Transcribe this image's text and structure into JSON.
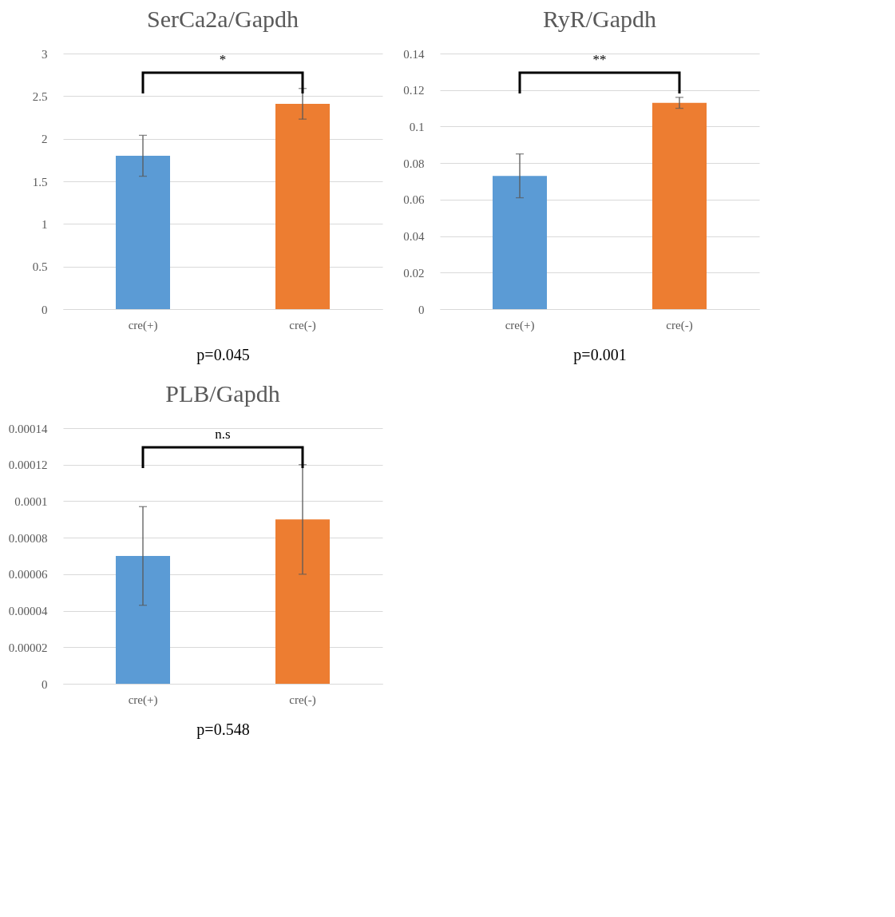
{
  "chart_data": [
    {
      "type": "bar",
      "title": "SerCa2a/Gapdh",
      "categories": [
        "cre(+)",
        "cre(-)"
      ],
      "values": [
        1.8,
        2.41
      ],
      "colors": [
        "#5b9bd5",
        "#ed7d31"
      ],
      "errors": [
        0.24,
        0.18
      ],
      "ylim": [
        0,
        3
      ],
      "yticks": [
        0,
        0.5,
        1,
        1.5,
        2,
        2.5,
        3
      ],
      "grid": "y",
      "annotations": [
        "*",
        "p=0.045"
      ]
    },
    {
      "type": "bar",
      "title": "RyR/Gapdh",
      "categories": [
        "cre(+)",
        "cre(-)"
      ],
      "values": [
        0.073,
        0.113
      ],
      "colors": [
        "#5b9bd5",
        "#ed7d31"
      ],
      "errors": [
        0.012,
        0.003
      ],
      "ylim": [
        0,
        0.14
      ],
      "yticks": [
        0,
        0.02,
        0.04,
        0.06,
        0.08,
        0.1,
        0.12,
        0.14
      ],
      "grid": "y",
      "annotations": [
        "**",
        "p=0.001"
      ]
    },
    {
      "type": "bar",
      "title": "PLB/Gapdh",
      "categories": [
        "cre(+)",
        "cre(-)"
      ],
      "values": [
        7e-05,
        9e-05
      ],
      "colors": [
        "#5b9bd5",
        "#ed7d31"
      ],
      "errors": [
        2.7e-05,
        3e-05
      ],
      "ylim": [
        0,
        0.00014
      ],
      "yticks": [
        0,
        {
          "value": 2e-05,
          "label": "0.00002"
        },
        {
          "value": 4e-05,
          "label": "0.00004"
        },
        {
          "value": 6e-05,
          "label": "0.00006"
        },
        {
          "value": 8e-05,
          "label": "0.00008"
        },
        0.0001,
        0.00012,
        0.00014
      ],
      "grid": "y",
      "annotations": [
        "n.s",
        "p=0.548"
      ]
    }
  ]
}
